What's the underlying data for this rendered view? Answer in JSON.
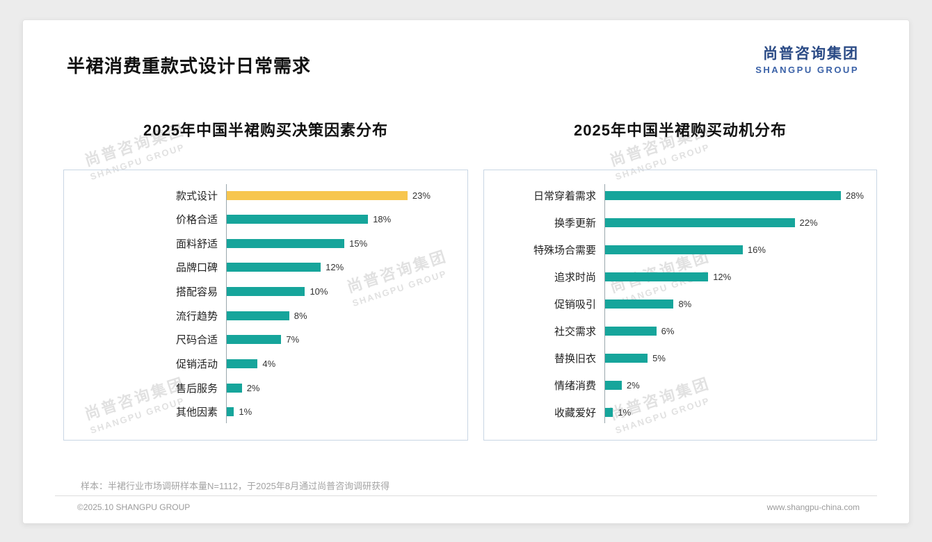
{
  "page": {
    "title": "半裙消费重款式设计日常需求",
    "logo": {
      "cn": "尚普咨询集团",
      "en": "SHANGPU GROUP"
    },
    "watermark": {
      "cn": "尚普咨询集团",
      "en": "SHANGPU GROUP"
    },
    "footnote": "样本：半裙行业市场调研样本量N=1112，于2025年8月通过尚普咨询调研获得",
    "footer_left": "©2025.10 SHANGPU GROUP",
    "footer_right": "www.shangpu-china.com"
  },
  "colors": {
    "bar_teal": "#16A59B",
    "highlight": "#F7C64F",
    "logo_blue": "#2A4A85"
  },
  "chart_data": [
    {
      "type": "bar",
      "orientation": "horizontal",
      "title": "2025年中国半裙购买决策因素分布",
      "categories": [
        "款式设计",
        "价格合适",
        "面料舒适",
        "品牌口碑",
        "搭配容易",
        "流行趋势",
        "尺码合适",
        "促销活动",
        "售后服务",
        "其他因素"
      ],
      "values": [
        23,
        18,
        15,
        12,
        10,
        8,
        7,
        4,
        2,
        1
      ],
      "value_suffix": "%",
      "xlim": [
        0,
        29
      ],
      "highlight_index": 0,
      "legend": "none",
      "grid": false
    },
    {
      "type": "bar",
      "orientation": "horizontal",
      "title": "2025年中国半裙购买动机分布",
      "categories": [
        "日常穿着需求",
        "换季更新",
        "特殊场合需要",
        "追求时尚",
        "促销吸引",
        "社交需求",
        "替换旧衣",
        "情绪消费",
        "收藏爱好"
      ],
      "values": [
        28,
        22,
        16,
        12,
        8,
        6,
        5,
        2,
        1
      ],
      "value_suffix": "%",
      "xlim": [
        0,
        30
      ],
      "legend": "none",
      "grid": false
    }
  ]
}
